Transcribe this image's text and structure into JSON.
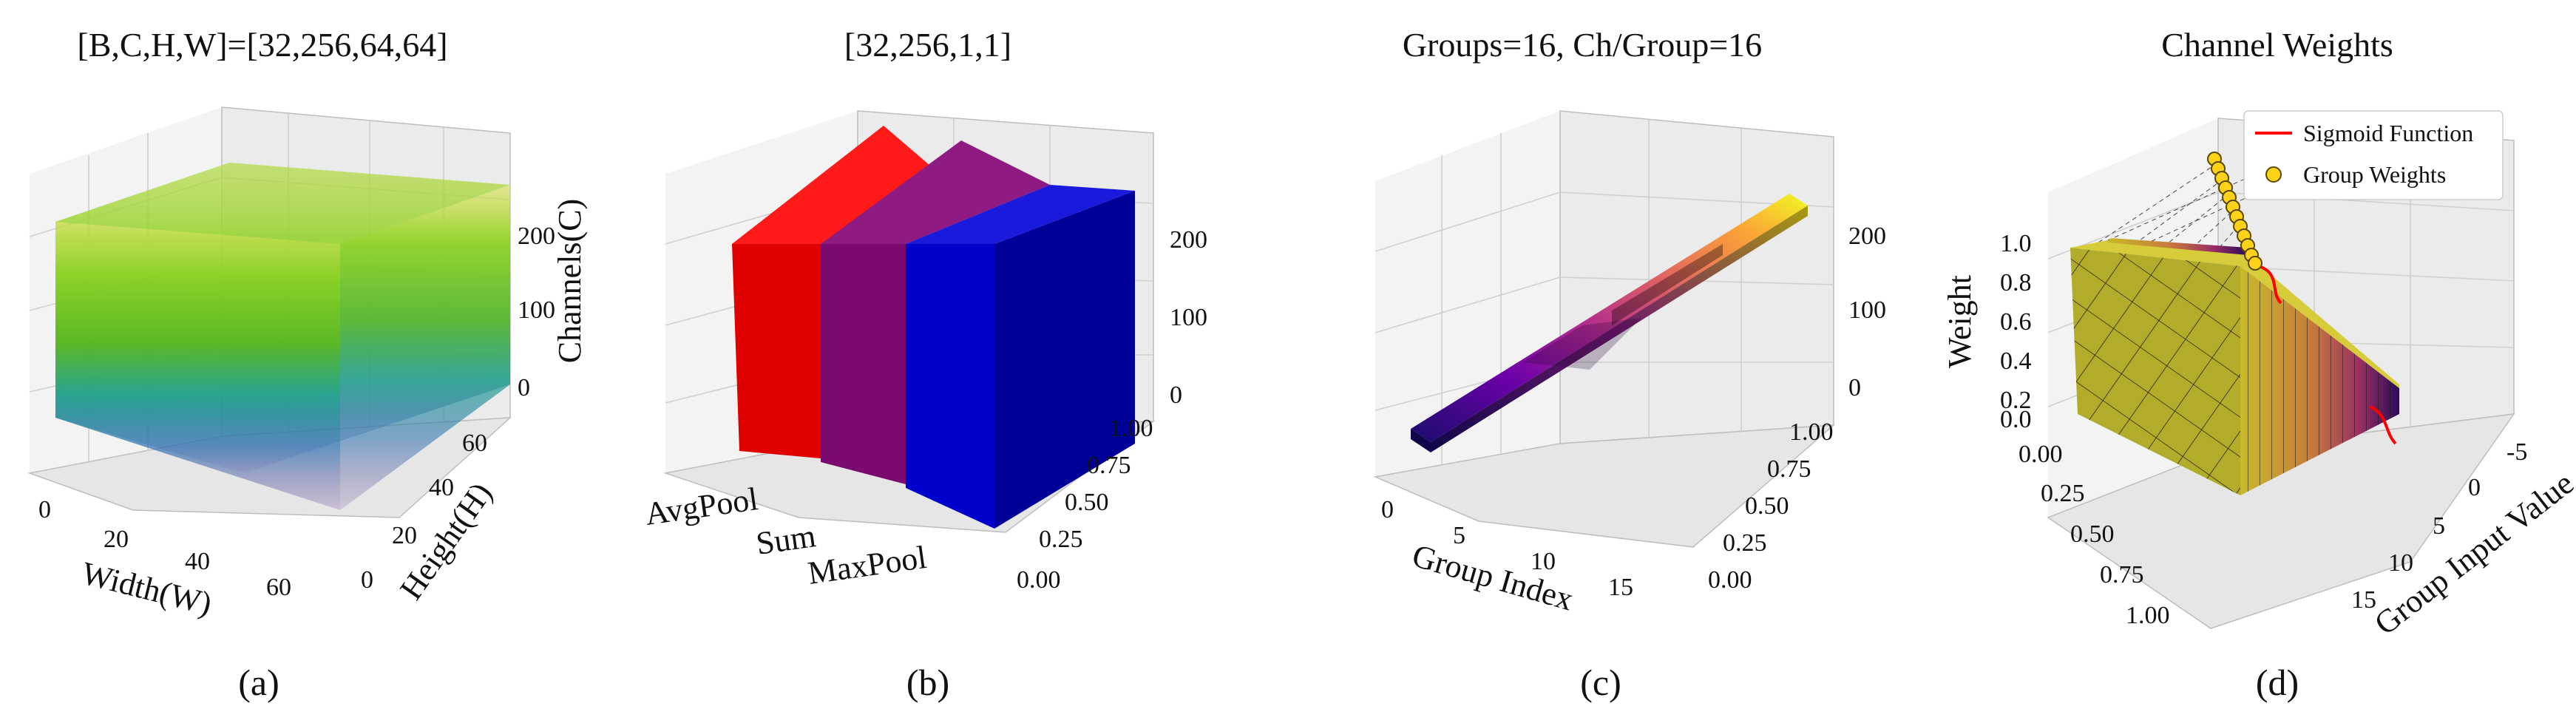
{
  "chart_data": [
    {
      "type": "3d-volume",
      "panel": "(a)",
      "title": "[B,C,H,W]=[32,256,64,64]",
      "xlabel": "Width(W)",
      "ylabel": "Height(H)",
      "zlabel": "Channels(C)",
      "x_ticks": [
        "0",
        "20",
        "40",
        "60"
      ],
      "y_ticks": [
        "0",
        "20",
        "40",
        "60"
      ],
      "z_ticks": [
        "0",
        "100",
        "200"
      ],
      "dims": {
        "B": 32,
        "C": 256,
        "H": 64,
        "W": 64
      },
      "colors": {
        "top": "#f2e64a",
        "upper": "#6cc41a",
        "middle": "#20a486",
        "lower": "#2a6fb0",
        "bottom": "#7b4d9a"
      }
    },
    {
      "type": "3d-bar",
      "panel": "(b)",
      "title": "[32,256,1,1]",
      "categories": [
        "AvgPool",
        "Sum",
        "MaxPool"
      ],
      "values": [
        256,
        256,
        256
      ],
      "colors": [
        "#e00000",
        "#7a0a6e",
        "#0000cc"
      ],
      "y_ticks": [
        "0.00",
        "0.25",
        "0.50",
        "0.75",
        "1.00"
      ],
      "z_ticks": [
        "0",
        "100",
        "200"
      ]
    },
    {
      "type": "3d-surface",
      "panel": "(c)",
      "title": "Groups=16, Ch/Group=16",
      "xlabel": "Group Index",
      "x_ticks": [
        "0",
        "5",
        "10",
        "15"
      ],
      "y_ticks": [
        "0.00",
        "0.25",
        "0.50",
        "0.75",
        "1.00"
      ],
      "z_ticks": [
        "0",
        "100",
        "200"
      ],
      "groups": 16,
      "channels_per_group": 16,
      "colormap": [
        "#1b0c6b",
        "#6a00a8",
        "#b12a90",
        "#e16462",
        "#fca636",
        "#f0f921"
      ]
    },
    {
      "type": "3d-line-surface",
      "panel": "(d)",
      "title": "Channel Weights",
      "xlabel": "Group Input Value",
      "zlabel": "Weight",
      "x_ticks": [
        "-5",
        "0",
        "5",
        "10",
        "15"
      ],
      "y_ticks": [
        "0.00",
        "0.25",
        "0.50",
        "0.75",
        "1.00"
      ],
      "z_ticks": [
        "0.0",
        "0.2",
        "0.4",
        "0.6",
        "0.8",
        "1.0"
      ],
      "legend": [
        {
          "label": "Sigmoid Function",
          "color": "#ff0000",
          "marker": "line"
        },
        {
          "label": "Group Weights",
          "color": "#ffd21a",
          "marker": "circle"
        }
      ],
      "sigmoid_x": [
        -5,
        -2.5,
        0,
        2.5,
        5,
        10,
        15
      ],
      "sigmoid_y": [
        0.007,
        0.076,
        0.5,
        0.924,
        0.993,
        1.0,
        1.0
      ]
    }
  ]
}
